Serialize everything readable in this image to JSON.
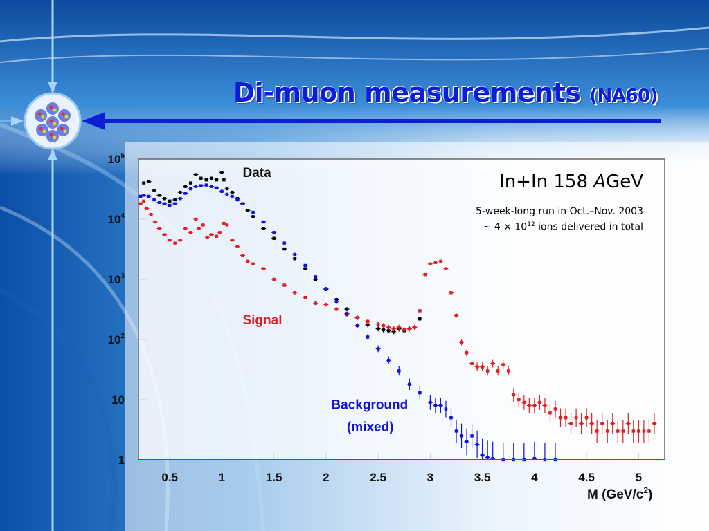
{
  "slide": {
    "title": "Di-muon measurements",
    "title_paren": "(NA60)",
    "info_head_a": "In+In 158 ",
    "info_head_b": "A",
    "info_head_c": "GeV",
    "info_line1": "5-week-long run in Oct.–Nov. 2003",
    "info_line2_a": "~ 4 × 10",
    "info_line2_exp": "12",
    "info_line2_b": "  ions delivered in total",
    "colors": {
      "title": "#0d1fd6",
      "data": "#000000",
      "signal": "#e02020",
      "background": "#1010e0"
    }
  },
  "chart_data": {
    "type": "scatter",
    "title": "",
    "xlabel": "M (GeV/c²)",
    "xlabel_a": "M (GeV/c",
    "xlabel_sup": "2",
    "xlabel_b": ")",
    "ylabel": "",
    "xlim": [
      0.2,
      5.25
    ],
    "ylim": [
      1,
      100000
    ],
    "yscale": "log",
    "xticks": [
      "0.5",
      "1",
      "1.5",
      "2",
      "2.5",
      "3",
      "3.5",
      "4",
      "4.5",
      "5"
    ],
    "xtick_values": [
      0.5,
      1,
      1.5,
      2,
      2.5,
      3,
      3.5,
      4,
      4.5,
      5
    ],
    "yticks": [
      {
        "base": "10",
        "exp": "5",
        "value": 100000
      },
      {
        "base": "10",
        "exp": "4",
        "value": 10000
      },
      {
        "base": "10",
        "exp": "3",
        "value": 1000
      },
      {
        "base": "10",
        "exp": "2",
        "value": 100
      },
      {
        "base": "10",
        "exp": "",
        "value": 10
      },
      {
        "base": "1",
        "exp": "",
        "value": 1
      }
    ],
    "series": [
      {
        "name": "Data",
        "color": "#000000",
        "x": [
          0.25,
          0.3,
          0.35,
          0.4,
          0.45,
          0.5,
          0.55,
          0.6,
          0.65,
          0.7,
          0.75,
          0.8,
          0.85,
          0.9,
          0.95,
          1.0,
          1.02,
          1.05,
          1.1,
          1.15,
          1.2,
          1.25,
          1.3,
          1.4,
          1.5,
          1.6,
          1.7,
          1.8,
          1.9,
          2.0,
          2.1,
          2.2,
          2.3,
          2.4,
          2.5,
          2.55,
          2.6,
          2.65,
          2.7,
          2.75,
          2.8,
          2.85,
          2.9
        ],
        "y": [
          40000,
          42000,
          30000,
          25000,
          22000,
          20000,
          21000,
          28000,
          35000,
          40000,
          55000,
          48000,
          45000,
          48000,
          45000,
          60000,
          45000,
          32000,
          28000,
          22000,
          18000,
          14000,
          11000,
          7000,
          4800,
          3200,
          2200,
          1500,
          1000,
          680,
          460,
          320,
          230,
          175,
          150,
          145,
          140,
          135,
          150,
          140,
          150,
          160,
          220
        ]
      },
      {
        "name": "Signal",
        "color": "#e02020",
        "x": [
          0.22,
          0.25,
          0.28,
          0.32,
          0.36,
          0.4,
          0.45,
          0.5,
          0.55,
          0.6,
          0.65,
          0.7,
          0.75,
          0.78,
          0.82,
          0.86,
          0.9,
          0.95,
          0.98,
          1.02,
          1.05,
          1.1,
          1.15,
          1.2,
          1.25,
          1.3,
          1.4,
          1.5,
          1.6,
          1.7,
          1.8,
          1.9,
          2.0,
          2.1,
          2.2,
          2.3,
          2.4,
          2.5,
          2.55,
          2.6,
          2.65,
          2.7,
          2.75,
          2.8,
          2.85,
          2.9,
          2.95,
          3.0,
          3.05,
          3.1,
          3.15,
          3.2,
          3.25,
          3.3,
          3.35,
          3.4,
          3.45,
          3.5,
          3.55,
          3.6,
          3.65,
          3.7,
          3.75,
          3.8,
          3.85,
          3.9,
          3.95,
          4.0,
          4.05,
          4.1,
          4.15,
          4.2,
          4.25,
          4.3,
          4.35,
          4.4,
          4.45,
          4.5,
          4.55,
          4.6,
          4.65,
          4.7,
          4.75,
          4.8,
          4.85,
          4.9,
          4.95,
          5.0,
          5.05,
          5.1,
          5.15
        ],
        "y": [
          18000,
          20000,
          15000,
          12000,
          9000,
          7000,
          5500,
          4500,
          4000,
          4500,
          7000,
          6000,
          10000,
          7000,
          8000,
          5000,
          5500,
          5200,
          6000,
          8500,
          8000,
          4500,
          3500,
          2500,
          2000,
          1800,
          1500,
          1000,
          800,
          600,
          500,
          400,
          380,
          320,
          260,
          230,
          200,
          180,
          170,
          160,
          150,
          160,
          145,
          150,
          160,
          300,
          1200,
          1800,
          1900,
          2000,
          1500,
          600,
          250,
          90,
          60,
          40,
          35,
          35,
          30,
          40,
          30,
          38,
          30,
          12,
          10,
          9,
          8,
          8,
          9,
          8,
          6,
          7,
          5,
          5,
          4,
          5,
          4,
          5,
          4,
          3,
          4,
          3,
          4,
          3,
          3,
          4,
          3,
          3,
          3,
          3,
          4
        ]
      },
      {
        "name": "Background",
        "color": "#1010e0",
        "x": [
          0.22,
          0.25,
          0.3,
          0.35,
          0.4,
          0.45,
          0.5,
          0.55,
          0.6,
          0.65,
          0.7,
          0.75,
          0.8,
          0.85,
          0.9,
          0.95,
          1.0,
          1.05,
          1.1,
          1.15,
          1.2,
          1.3,
          1.4,
          1.5,
          1.6,
          1.7,
          1.8,
          1.9,
          2.0,
          2.1,
          2.2,
          2.3,
          2.4,
          2.5,
          2.6,
          2.7,
          2.8,
          2.9,
          3.0,
          3.05,
          3.1,
          3.15,
          3.2,
          3.25,
          3.3,
          3.35,
          3.4,
          3.45,
          3.5,
          3.55,
          3.6,
          3.7,
          3.8,
          3.9,
          4.0,
          4.1,
          4.2
        ],
        "y": [
          24000,
          25000,
          24000,
          21000,
          19000,
          18000,
          17000,
          18000,
          22000,
          27000,
          32000,
          35000,
          36000,
          37000,
          35000,
          33000,
          29000,
          26000,
          24000,
          21000,
          18000,
          13000,
          9000,
          6000,
          4000,
          2600,
          1700,
          1100,
          700,
          430,
          270,
          170,
          110,
          70,
          45,
          30,
          18,
          13,
          9,
          8,
          8,
          7,
          5,
          3,
          2.5,
          2,
          2.5,
          1.8,
          1.2,
          1.1,
          1.05,
          1,
          1,
          1,
          1.05,
          1,
          1
        ]
      }
    ],
    "annotations": [
      {
        "text": "Data",
        "x": 1.2,
        "y": 50000,
        "color": "#111111"
      },
      {
        "text": "Signal",
        "x": 1.2,
        "y": 180,
        "color": "#e02020"
      },
      {
        "text": "Background",
        "x": 2.05,
        "y": 7,
        "color": "#1010e0"
      },
      {
        "text": "(mixed)",
        "x": 2.2,
        "y": 3,
        "color": "#1010e0"
      }
    ]
  }
}
